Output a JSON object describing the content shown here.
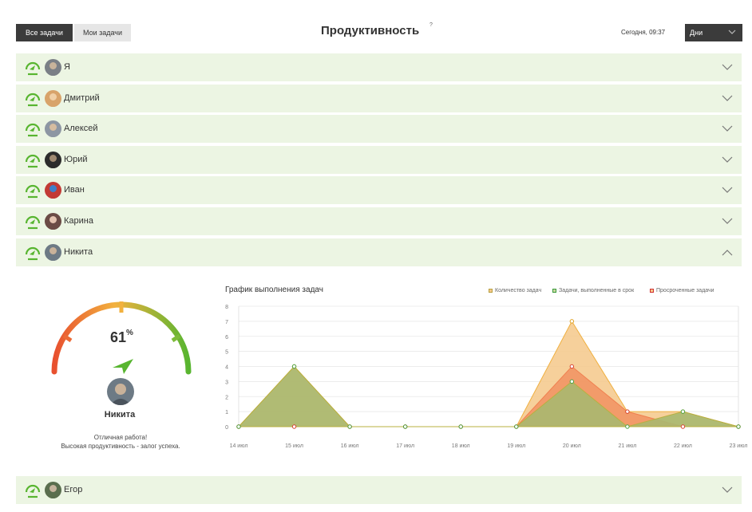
{
  "header": {
    "tab_all": "Все задачи",
    "tab_my": "Мои задачи",
    "title": "Продуктивность",
    "help": "?",
    "now": "Сегодня, 09:37",
    "period": "Дни"
  },
  "colors": {
    "row_bg": "#ecf5e3",
    "accent_green": "#58b530",
    "gauge_red": "#e8502f",
    "gauge_orange": "#f2b13e",
    "total_tasks": "#f5c88a",
    "ontime_tasks": "#a9b870",
    "overdue_tasks": "#f08a5a"
  },
  "rows": [
    {
      "name": "Я",
      "icon": "speedometer-icon",
      "expanded": false
    },
    {
      "name": "Дмитрий",
      "icon": "speedometer-icon",
      "expanded": false
    },
    {
      "name": "Алексей",
      "icon": "speedometer-icon",
      "expanded": false
    },
    {
      "name": "Юрий",
      "icon": "speedometer-icon",
      "expanded": false
    },
    {
      "name": "Иван",
      "icon": "speedometer-icon",
      "expanded": false
    },
    {
      "name": "Карина",
      "icon": "speedometer-icon",
      "expanded": false
    },
    {
      "name": "Никита",
      "icon": "speedometer-icon",
      "expanded": true
    }
  ],
  "row_last": {
    "name": "Егор",
    "icon": "speedometer-icon",
    "expanded": false
  },
  "detail": {
    "percent": "61",
    "percent_sign": "%",
    "percent_value": 61,
    "name": "Никита",
    "message_line1": "Отличная работа!",
    "message_line2": "Высокая продуктивность - залог успеха."
  },
  "chart_data": {
    "type": "area",
    "title": "График выполнения задач",
    "categories": [
      "14 июл",
      "15 июл",
      "16 июл",
      "17 июл",
      "18 июл",
      "19 июл",
      "20 июл",
      "21 июл",
      "22 июл",
      "23 июл"
    ],
    "ylim": [
      0,
      8
    ],
    "yticks": [
      0,
      1,
      2,
      3,
      4,
      5,
      6,
      7,
      8
    ],
    "grid": true,
    "legend_position": "top-right",
    "series": [
      {
        "name": "Количество задач",
        "values": [
          0,
          4,
          0,
          0,
          0,
          0,
          7,
          1,
          1,
          0
        ]
      },
      {
        "name": "Задачи, выполненные в срок",
        "values": [
          0,
          4,
          0,
          0,
          0,
          0,
          3,
          0,
          1,
          0
        ]
      },
      {
        "name": "Просроченные задачи",
        "values": [
          0,
          0,
          0,
          0,
          0,
          0,
          4,
          1,
          0,
          0
        ]
      }
    ]
  }
}
